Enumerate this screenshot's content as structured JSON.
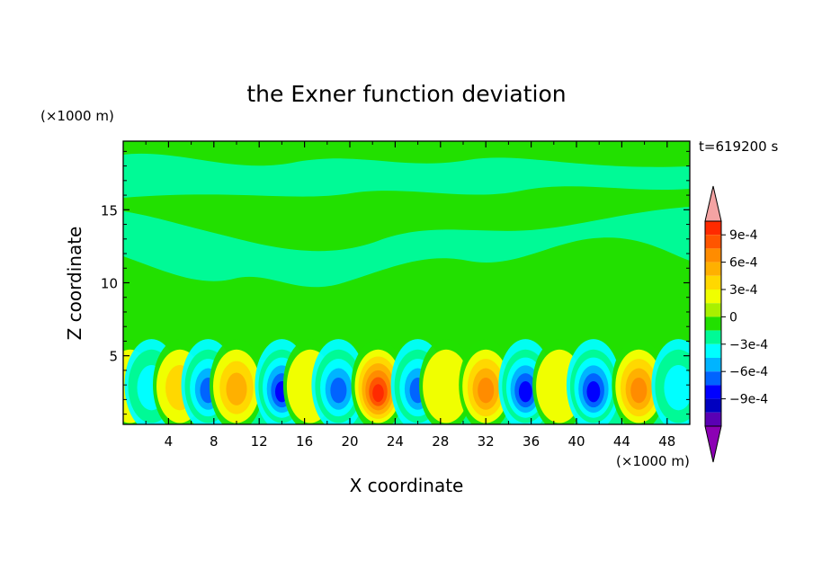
{
  "chart_data": {
    "type": "heatmap",
    "title": "the Exner function deviation",
    "xlabel": "X coordinate",
    "ylabel": "Z coordinate",
    "x_unit": "(×1000 m)",
    "y_unit": "(×1000 m)",
    "time_label": "t=619200 s",
    "xlim": [
      0,
      50
    ],
    "ylim": [
      0.3,
      19.7
    ],
    "x_ticks": [
      4,
      8,
      12,
      16,
      20,
      24,
      28,
      32,
      36,
      40,
      44,
      48
    ],
    "y_ticks": [
      5,
      10,
      15
    ],
    "colorbar": {
      "tick_values": [
        0.0009,
        0.0006,
        0.0003,
        0,
        -0.0003,
        -0.0006,
        -0.0009
      ],
      "tick_labels": [
        "9e-4",
        "6e-4",
        "3e-4",
        "0",
        "−3e-4",
        "−6e-4",
        "−9e-4"
      ],
      "levels": [
        0.00105,
        0.0009,
        0.00075,
        0.0006,
        0.00045,
        0.0003,
        0.00015,
        0,
        -0.00015,
        -0.0003,
        -0.00045,
        -0.0006,
        -0.00075,
        -0.0009,
        -0.00105
      ],
      "colors": [
        "#f4a3a3",
        "#ff2a00",
        "#ff5500",
        "#ff8c00",
        "#ffb000",
        "#ffd800",
        "#f0ff00",
        "#a8f000",
        "#22e000",
        "#00fa96",
        "#00ffff",
        "#00b4ff",
        "#0064ff",
        "#0000ff",
        "#0000c0",
        "#5a00b4",
        "#8c00b4"
      ]
    },
    "columns": [
      {
        "x": 0.6,
        "value": 0.0002
      },
      {
        "x": 2.5,
        "value": -0.0003
      },
      {
        "x": 5.0,
        "value": 0.0003
      },
      {
        "x": 7.5,
        "value": -0.0006
      },
      {
        "x": 10.0,
        "value": 0.0005
      },
      {
        "x": 14.0,
        "value": -0.0007
      },
      {
        "x": 16.5,
        "value": 0.0001
      },
      {
        "x": 19.0,
        "value": -0.00065
      },
      {
        "x": 22.5,
        "value": 0.0009
      },
      {
        "x": 26.0,
        "value": -0.0006
      },
      {
        "x": 28.5,
        "value": 0.0001
      },
      {
        "x": 32.0,
        "value": 0.00055
      },
      {
        "x": 35.5,
        "value": -0.0007
      },
      {
        "x": 38.5,
        "value": 0.0002
      },
      {
        "x": 41.5,
        "value": -0.0007
      },
      {
        "x": 45.5,
        "value": 0.0006
      },
      {
        "x": 49.0,
        "value": -0.0003
      }
    ]
  }
}
